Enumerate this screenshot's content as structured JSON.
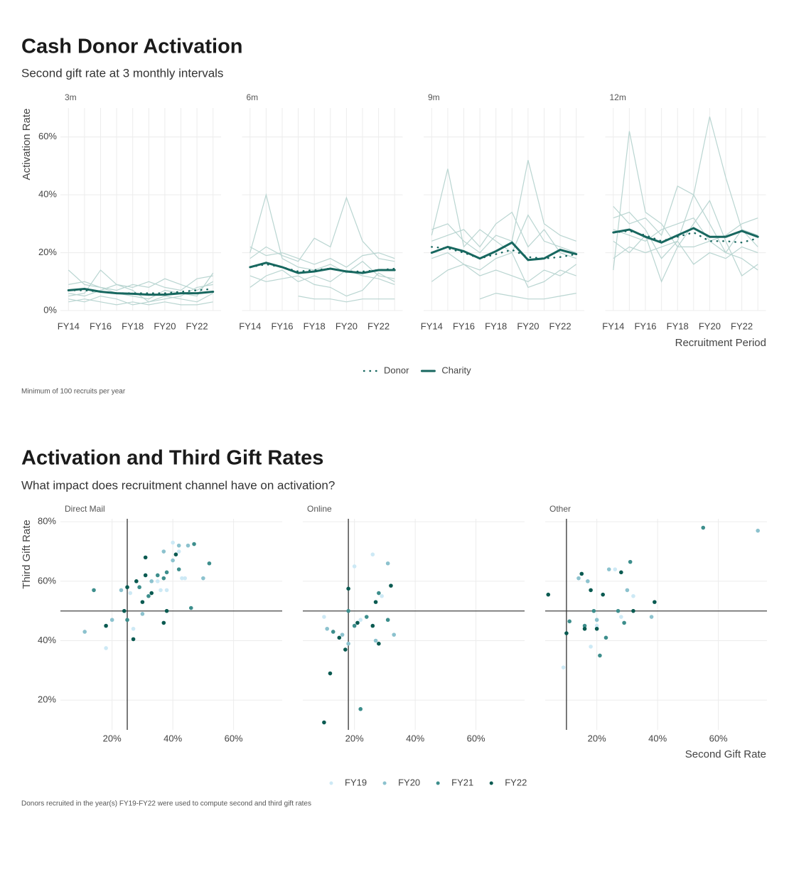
{
  "chart_data": [
    {
      "type": "line",
      "title": "Cash Donor Activation",
      "subtitle": "Second gift rate at 3 monthly intervals",
      "ylabel": "Activation Rate",
      "xlabel": "Recruitment Period",
      "caption": "Minimum of 100 recruits per year",
      "categories": [
        "FY14",
        null,
        "FY16",
        null,
        "FY18",
        null,
        "FY20",
        null,
        "FY22",
        null
      ],
      "ylim": [
        0,
        70
      ],
      "yticks": [
        {
          "value": 0,
          "label": "0%"
        },
        {
          "value": 20,
          "label": "20%"
        },
        {
          "value": 40,
          "label": "40%"
        },
        {
          "value": 60,
          "label": "60%"
        }
      ],
      "grid": true,
      "background_color": "#b9d5d1",
      "facets": [
        {
          "label": "3m",
          "series": [
            {
              "name": "Donor",
              "color": "#17675f",
              "linestyle": "dotted",
              "values": [
                7,
                7,
                6.5,
                6,
                6,
                6,
                6,
                6.5,
                7,
                7.5
              ]
            },
            {
              "name": "Charity",
              "color": "#17675f",
              "linestyle": "solid",
              "values": [
                7,
                7.5,
                6.5,
                6,
                5.8,
                5.5,
                5.5,
                6,
                6,
                6.5
              ]
            }
          ],
          "background": [
            [
              14,
              9,
              8,
              6,
              5,
              4,
              7,
              6,
              5,
              13
            ],
            [
              5,
              6,
              14,
              9,
              7,
              3,
              4,
              5,
              8,
              9
            ],
            [
              4,
              3,
              5,
              4,
              2,
              3,
              5,
              4,
              3,
              6
            ],
            [
              9,
              10,
              8,
              7,
              9,
              8,
              11,
              9,
              7,
              10
            ],
            [
              3,
              4,
              3,
              2,
              3,
              2,
              3,
              2,
              2,
              3
            ],
            [
              6,
              5,
              7,
              9,
              8,
              10,
              8,
              7,
              11,
              12
            ]
          ]
        },
        {
          "label": "6m",
          "series": [
            {
              "name": "Donor",
              "color": "#17675f",
              "linestyle": "dotted",
              "values": [
                15,
                16,
                15,
                13.5,
                14,
                14.5,
                13.5,
                13.5,
                14,
                14.5
              ]
            },
            {
              "name": "Charity",
              "color": "#17675f",
              "linestyle": "solid",
              "values": [
                15,
                16.5,
                15,
                13,
                13.5,
                14.5,
                13.5,
                13,
                14,
                14
              ]
            }
          ],
          "background": [
            [
              20,
              40,
              18,
              15,
              14,
              16,
              13,
              17,
              12,
              11
            ],
            [
              8,
              12,
              14,
              10,
              12,
              10,
              14,
              12,
              11,
              9
            ],
            [
              18,
              22,
              19,
              17,
              25,
              22,
              39,
              24,
              18,
              17
            ],
            [
              12,
              10,
              11,
              12,
              9,
              8,
              5,
              7,
              13,
              10
            ],
            [
              22,
              19,
              20,
              18,
              16,
              18,
              15,
              19,
              20,
              18
            ],
            [
              null,
              null,
              null,
              5,
              4,
              4,
              3,
              4,
              4,
              4
            ]
          ]
        },
        {
          "label": "9m",
          "series": [
            {
              "name": "Donor",
              "color": "#17675f",
              "linestyle": "dotted",
              "values": [
                22,
                21.5,
                20,
                18,
                19.5,
                21,
                18.5,
                18,
                18.5,
                19.5
              ]
            },
            {
              "name": "Charity",
              "color": "#17675f",
              "linestyle": "solid",
              "values": [
                20,
                22,
                20.5,
                18,
                20.5,
                23.5,
                17.5,
                18,
                21,
                19.5
              ]
            }
          ],
          "background": [
            [
              26,
              49,
              22,
              28,
              24,
              20,
              33,
              24,
              22,
              20
            ],
            [
              10,
              14,
              16,
              12,
              14,
              12,
              10,
              14,
              12,
              16
            ],
            [
              28,
              30,
              24,
              20,
              26,
              24,
              52,
              30,
              26,
              24
            ],
            [
              18,
              20,
              16,
              14,
              18,
              20,
              8,
              10,
              14,
              12
            ],
            [
              24,
              26,
              28,
              22,
              30,
              34,
              22,
              28,
              20,
              18
            ],
            [
              null,
              null,
              null,
              4,
              6,
              5,
              4,
              4,
              5,
              6
            ]
          ]
        },
        {
          "label": "12m",
          "series": [
            {
              "name": "Donor",
              "color": "#17675f",
              "linestyle": "dotted",
              "values": [
                27,
                27.5,
                26,
                24,
                25.5,
                27,
                24,
                24,
                23.5,
                25
              ]
            },
            {
              "name": "Charity",
              "color": "#17675f",
              "linestyle": "solid",
              "values": [
                27,
                28,
                25.5,
                23.5,
                26,
                28.5,
                25.5,
                25.5,
                27.5,
                25.5
              ]
            }
          ],
          "background": [
            [
              14,
              62,
              34,
              30,
              22,
              22,
              24,
              20,
              18,
              14
            ],
            [
              32,
              34,
              28,
              18,
              24,
              40,
              67,
              46,
              28,
              26
            ],
            [
              24,
              20,
              26,
              10,
              22,
              30,
              38,
              24,
              12,
              16
            ],
            [
              36,
              30,
              32,
              26,
              43,
              40,
              30,
              20,
              28,
              22
            ],
            [
              18,
              22,
              20,
              22,
              24,
              16,
              20,
              18,
              22,
              20
            ],
            [
              28,
              26,
              24,
              28,
              30,
              32,
              24,
              26,
              30,
              32
            ]
          ]
        }
      ]
    },
    {
      "type": "scatter",
      "title": "Activation and Third Gift Rates",
      "subtitle": "What impact does recruitment channel have on activation?",
      "ylabel": "Third Gift Rate",
      "xlabel": "Second Gift Rate",
      "caption": "Donors recruited in the year(s) FY19-FY22 were used to compute second and third gift rates",
      "xlim": [
        3,
        76
      ],
      "ylim": [
        10,
        81
      ],
      "xticks": [
        {
          "value": 20,
          "label": "20%"
        },
        {
          "value": 40,
          "label": "40%"
        },
        {
          "value": 60,
          "label": "60%"
        }
      ],
      "yticks": [
        {
          "value": 20,
          "label": "20%"
        },
        {
          "value": 40,
          "label": "40%"
        },
        {
          "value": 60,
          "label": "60%"
        },
        {
          "value": 80,
          "label": "80%"
        }
      ],
      "grid": true,
      "series": [
        {
          "name": "FY19",
          "color": "#cde9f5"
        },
        {
          "name": "FY20",
          "color": "#8cc2ce"
        },
        {
          "name": "FY21",
          "color": "#3d8e8c"
        },
        {
          "name": "FY22",
          "color": "#0a5a51"
        }
      ],
      "facets": [
        {
          "label": "Direct Mail",
          "hline": 50,
          "vline": 25,
          "series": [
            {
              "x": [
                18,
                27,
                36,
                40,
                42,
                43,
                38,
                35,
                44,
                26
              ],
              "y": [
                37.5,
                44,
                57,
                73,
                70,
                61,
                57,
                60,
                61,
                56
              ]
            },
            {
              "x": [
                11,
                20,
                23,
                30,
                33,
                37,
                45,
                50,
                40,
                42
              ],
              "y": [
                43,
                47,
                57,
                49,
                60,
                70,
                72,
                61,
                67,
                72
              ]
            },
            {
              "x": [
                14,
                25,
                29,
                32,
                35,
                38,
                42,
                46,
                52,
                47,
                37
              ],
              "y": [
                57,
                47,
                58,
                55,
                62,
                63,
                64,
                51,
                66,
                72.5,
                61
              ]
            },
            {
              "x": [
                18,
                24,
                25,
                27,
                28,
                30,
                31,
                33,
                37,
                38,
                41,
                31
              ],
              "y": [
                45,
                50,
                58,
                40.5,
                60,
                53,
                68,
                56,
                46,
                50,
                69,
                62
              ]
            }
          ]
        },
        {
          "label": "Online",
          "hline": 50,
          "vline": 18,
          "series": [
            {
              "x": [
                10,
                20,
                26,
                29,
                22
              ],
              "y": [
                48,
                65,
                69,
                55,
                47
              ]
            },
            {
              "x": [
                11,
                16,
                18,
                31,
                33,
                27
              ],
              "y": [
                44,
                42,
                39,
                66,
                42,
                40
              ]
            },
            {
              "x": [
                13,
                18,
                20,
                24,
                28,
                31,
                22
              ],
              "y": [
                43,
                50,
                45,
                48,
                56,
                47,
                17
              ]
            },
            {
              "x": [
                10,
                12,
                15,
                17,
                18,
                21,
                27,
                28,
                32,
                26
              ],
              "y": [
                12.5,
                29,
                41,
                37,
                57.5,
                46,
                53,
                39,
                58.5,
                45
              ]
            }
          ]
        },
        {
          "label": "Other",
          "hline": 50,
          "vline": 10,
          "series": [
            {
              "x": [
                9,
                18,
                20,
                26,
                32,
                28
              ],
              "y": [
                31,
                38,
                45,
                64,
                55,
                48
              ]
            },
            {
              "x": [
                14,
                17,
                20,
                24,
                30,
                38,
                73
              ],
              "y": [
                61,
                60,
                47,
                64,
                57,
                48,
                77
              ]
            },
            {
              "x": [
                11,
                16,
                19,
                21,
                23,
                27,
                31,
                55,
                29
              ],
              "y": [
                46.5,
                45,
                50,
                35,
                41,
                50,
                66.5,
                78,
                46
              ]
            },
            {
              "x": [
                4,
                10,
                15,
                16,
                18,
                20,
                22,
                28,
                32,
                39
              ],
              "y": [
                55.5,
                42.5,
                62.5,
                44,
                57,
                44,
                55.5,
                63,
                50,
                53
              ]
            }
          ]
        }
      ]
    }
  ]
}
